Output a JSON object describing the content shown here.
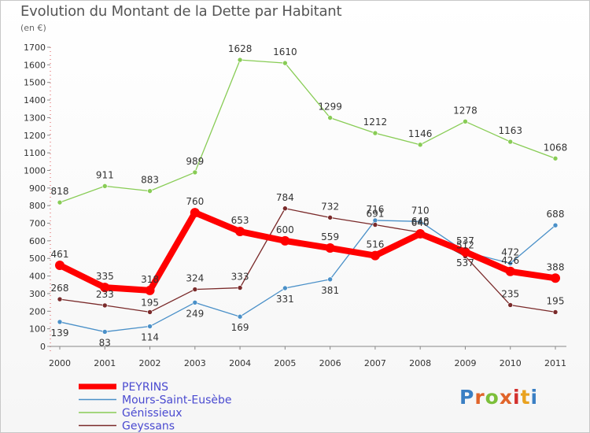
{
  "header": {
    "title": "Evolution du Montant de la Dette par Habitant",
    "unit": "(en €)"
  },
  "logo": {
    "text": "Proxiti"
  },
  "chart_data": {
    "type": "line",
    "categories": [
      "2000",
      "2001",
      "2002",
      "2003",
      "2004",
      "2005",
      "2006",
      "2007",
      "2008",
      "2009",
      "2010",
      "2011"
    ],
    "y_ticks": [
      0,
      100,
      200,
      300,
      400,
      500,
      600,
      700,
      800,
      900,
      1000,
      1100,
      1200,
      1300,
      1400,
      1500,
      1600,
      1700
    ],
    "ylim": [
      0,
      1700
    ],
    "grid": false,
    "legend_position": "bottom-left",
    "series": [
      {
        "name": "PEYRINS",
        "color": "#ff0000",
        "values": [
          461,
          335,
          318,
          760,
          653,
          600,
          559,
          516,
          640,
          537,
          426,
          388
        ]
      },
      {
        "name": "Mours-Saint-Eusèbe",
        "color": "#4a90c8",
        "values": [
          139,
          83,
          114,
          249,
          169,
          331,
          381,
          716,
          710,
          537,
          472,
          688
        ]
      },
      {
        "name": "Génissieux",
        "color": "#88cc55",
        "values": [
          818,
          911,
          883,
          989,
          1628,
          1610,
          1299,
          1212,
          1146,
          1278,
          1163,
          1068
        ]
      },
      {
        "name": "Geyssans",
        "color": "#7a2a2a",
        "values": [
          268,
          233,
          195,
          324,
          333,
          784,
          732,
          691,
          648,
          512,
          235,
          195
        ]
      }
    ]
  }
}
